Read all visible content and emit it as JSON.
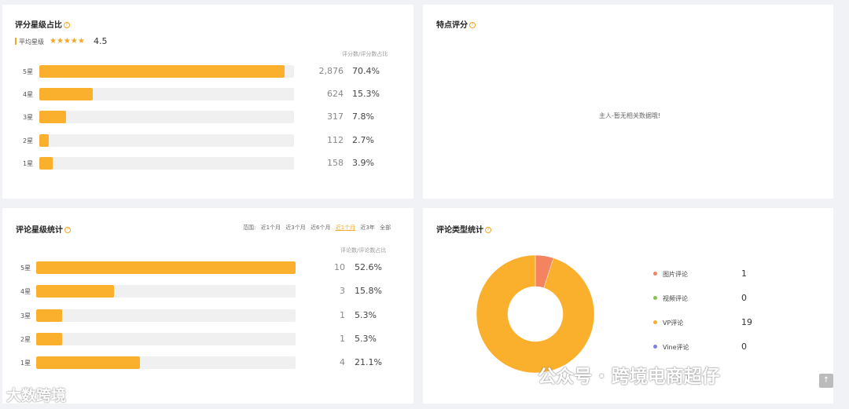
{
  "rating_card": {
    "title": "评分星级占比",
    "avg_label": "平均星级",
    "avg_stars": "★★★★★",
    "avg_value": "4.5",
    "col_head": "评分数/评分数占比",
    "rows": [
      {
        "label": "5星",
        "count": "2,876",
        "pct": "70.4%",
        "fill": 0.964
      },
      {
        "label": "4星",
        "count": "624",
        "pct": "15.3%",
        "fill": 0.209
      },
      {
        "label": "3星",
        "count": "317",
        "pct": "7.8%",
        "fill": 0.106
      },
      {
        "label": "2星",
        "count": "112",
        "pct": "2.7%",
        "fill": 0.037
      },
      {
        "label": "1星",
        "count": "158",
        "pct": "3.9%",
        "fill": 0.053
      }
    ]
  },
  "feature_card": {
    "title": "特点评分",
    "empty_msg": "主人-暂无相关数据哦!"
  },
  "review_star_card": {
    "title": "评论星级统计",
    "range_label": "范围:",
    "range_options": [
      "近1个月",
      "近3个月",
      "近6个月",
      "近1个月",
      "近3年",
      "全部"
    ],
    "range_active_index": 3,
    "col_head": "评论数/评论数占比",
    "rows": [
      {
        "label": "5星",
        "count": "10",
        "pct": "52.6%",
        "fill": 1.0
      },
      {
        "label": "4星",
        "count": "3",
        "pct": "15.8%",
        "fill": 0.3
      },
      {
        "label": "3星",
        "count": "1",
        "pct": "5.3%",
        "fill": 0.1
      },
      {
        "label": "2星",
        "count": "1",
        "pct": "5.3%",
        "fill": 0.1
      },
      {
        "label": "1星",
        "count": "4",
        "pct": "21.1%",
        "fill": 0.4
      }
    ]
  },
  "type_card": {
    "title": "评论类型统计",
    "legend": [
      {
        "label": "图片评论",
        "value": "1",
        "color": "#f4845f"
      },
      {
        "label": "视频评论",
        "value": "0",
        "color": "#8bc34a"
      },
      {
        "label": "VP评论",
        "value": "19",
        "color": "#faaf2d"
      },
      {
        "label": "Vine评论",
        "value": "0",
        "color": "#7b7fe6"
      }
    ]
  },
  "chart_data": {
    "type": "pie",
    "title": "评论类型统计",
    "categories": [
      "图片评论",
      "视频评论",
      "VP评论",
      "Vine评论"
    ],
    "values": [
      1,
      0,
      19,
      0
    ],
    "colors": [
      "#f4845f",
      "#8bc34a",
      "#faaf2d",
      "#7b7fe6"
    ]
  },
  "watermarks": {
    "left": "大数跨境",
    "right": "公众号 · 跨境电商超仔"
  },
  "scroll_top_icon": "arrow-up-icon"
}
